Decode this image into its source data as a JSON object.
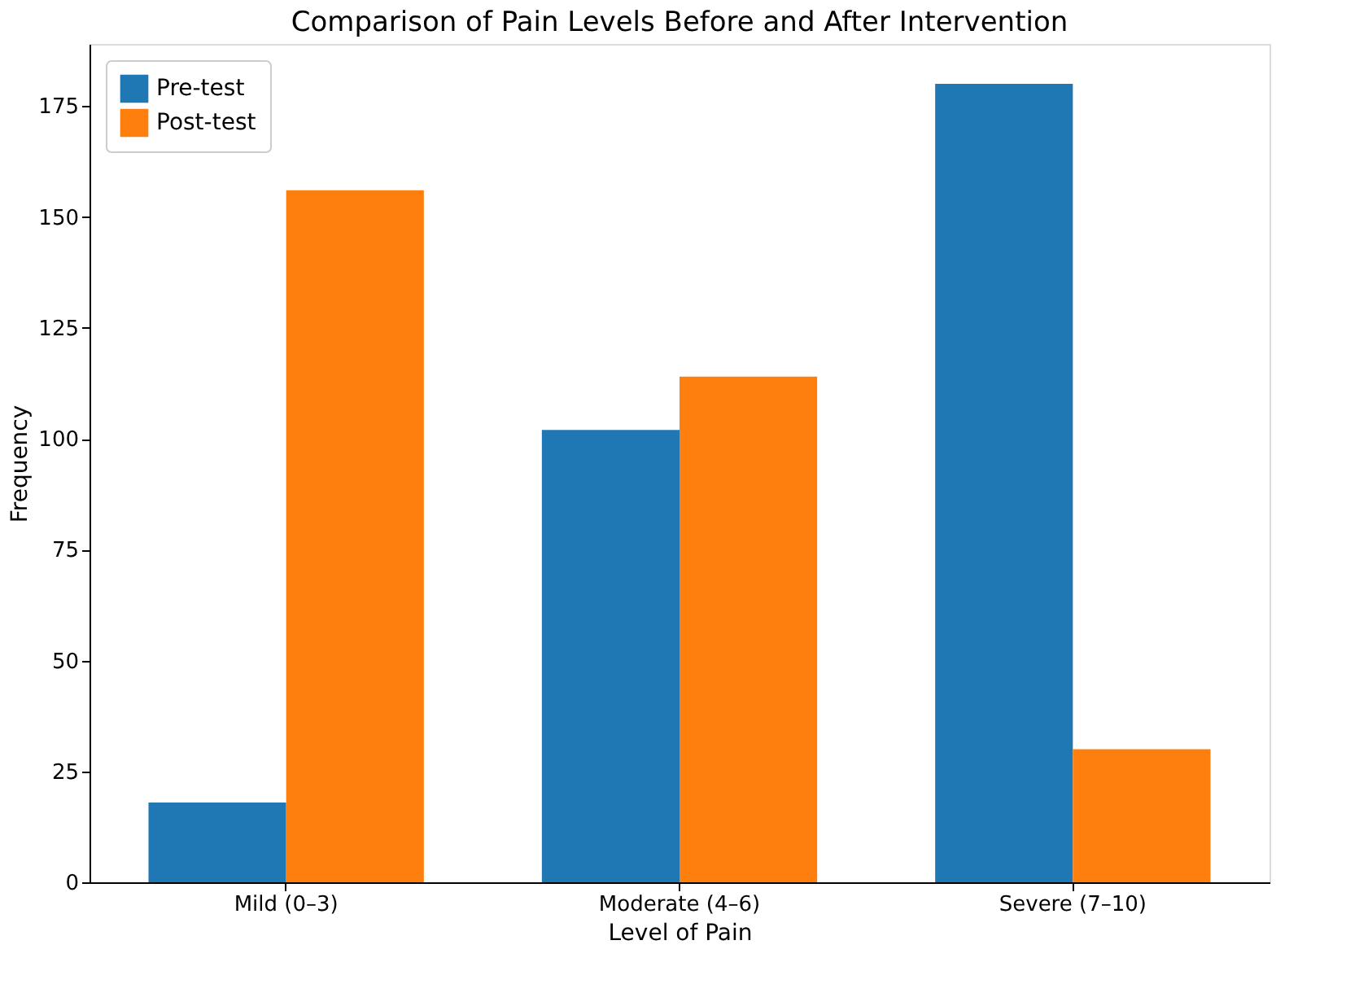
{
  "chart_data": {
    "type": "bar",
    "title": "Comparison of Pain Levels Before and After Intervention",
    "xlabel": "Level of Pain",
    "ylabel": "Frequency",
    "categories": [
      "Mild (0–3)",
      "Moderate (4–6)",
      "Severe (7–10)"
    ],
    "series": [
      {
        "name": "Pre-test",
        "color": "#1f77b4",
        "values": [
          18,
          102,
          180
        ]
      },
      {
        "name": "Post-test",
        "color": "#ff7f0e",
        "values": [
          156,
          114,
          30
        ]
      }
    ],
    "ylim": [
      0,
      189
    ],
    "yticks": [
      0,
      25,
      50,
      75,
      100,
      125,
      150,
      175
    ],
    "grid": false,
    "legend": "top left"
  }
}
